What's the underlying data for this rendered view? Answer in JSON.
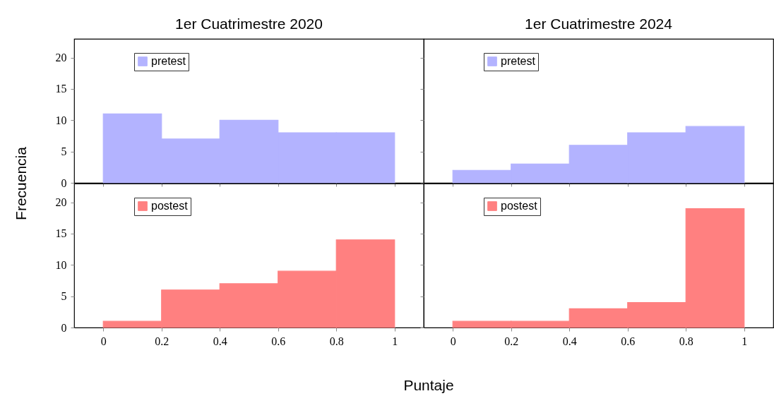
{
  "chart_data": [
    {
      "type": "histogram",
      "title": "1er Cuatrimestre 2020",
      "ylabel": "Frecuencia",
      "bins": [
        0,
        0.2,
        0.4,
        0.6,
        0.8,
        1
      ],
      "series": [
        {
          "name": "pretest",
          "color": "#b3b3ff",
          "values": [
            11,
            7,
            10,
            8,
            8
          ]
        }
      ],
      "xlim": [
        -0.1,
        1.1
      ],
      "ylim": [
        0,
        23
      ],
      "xticks": [
        0,
        0.2,
        0.4,
        0.6,
        0.8,
        1
      ],
      "yticks": [
        0,
        5,
        10,
        15,
        20
      ],
      "legend": "top left",
      "tick_labels": "y"
    },
    {
      "type": "histogram",
      "title": "1er Cuatrimestre 2024",
      "bins": [
        0,
        0.2,
        0.4,
        0.6,
        0.8,
        1
      ],
      "series": [
        {
          "name": "pretest",
          "color": "#b3b3ff",
          "values": [
            2,
            3,
            6,
            8,
            9
          ]
        }
      ],
      "xlim": [
        -0.1,
        1.1
      ],
      "ylim": [
        0,
        23
      ],
      "xticks": [
        0,
        0.2,
        0.4,
        0.6,
        0.8,
        1
      ],
      "yticks": [
        0,
        5,
        10,
        15,
        20
      ],
      "legend": "top left",
      "tick_labels": false
    },
    {
      "type": "histogram",
      "xlabel": "Puntaje",
      "bins": [
        0,
        0.2,
        0.4,
        0.6,
        0.8,
        1
      ],
      "series": [
        {
          "name": "postest",
          "color": "#ff8080",
          "values": [
            1,
            6,
            7,
            9,
            14
          ]
        }
      ],
      "xlim": [
        -0.1,
        1.1
      ],
      "ylim": [
        0,
        23
      ],
      "xticks": [
        0,
        0.2,
        0.4,
        0.6,
        0.8,
        1
      ],
      "yticks": [
        0,
        5,
        10,
        15,
        20
      ],
      "legend": "top left"
    },
    {
      "type": "histogram",
      "bins": [
        0,
        0.2,
        0.4,
        0.6,
        0.8,
        1
      ],
      "series": [
        {
          "name": "postest",
          "color": "#ff8080",
          "values": [
            1,
            1,
            3,
            4,
            19
          ]
        }
      ],
      "xlim": [
        -0.1,
        1.1
      ],
      "ylim": [
        0,
        23
      ],
      "xticks": [
        0,
        0.2,
        0.4,
        0.6,
        0.8,
        1
      ],
      "yticks": [
        0,
        5,
        10,
        15,
        20
      ],
      "legend": "top left",
      "tick_labels": "x"
    }
  ]
}
